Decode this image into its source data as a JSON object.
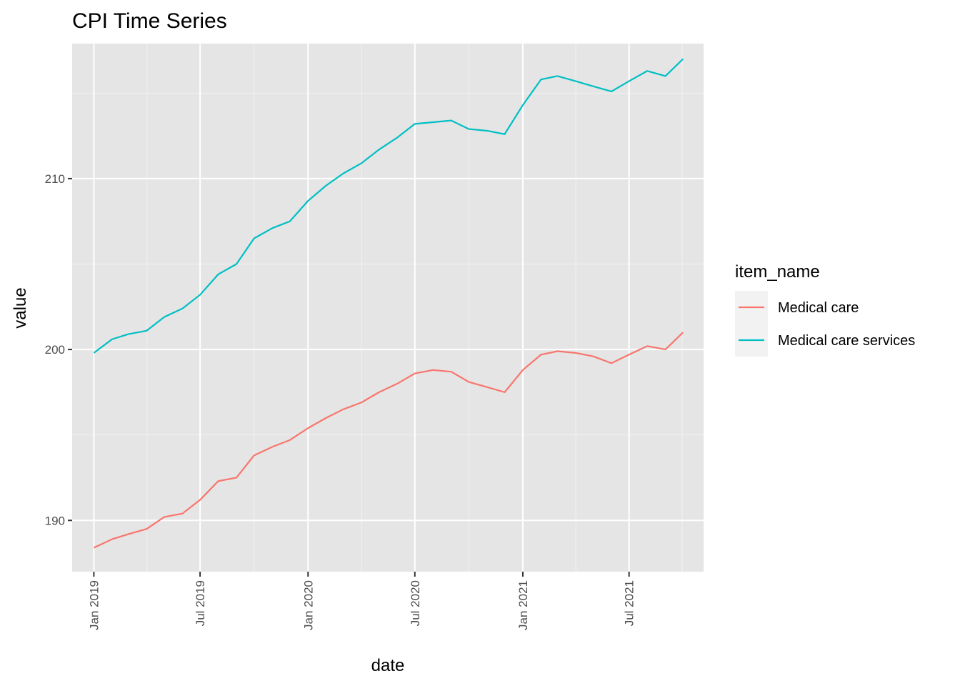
{
  "chart_data": {
    "type": "line",
    "title": "CPI Time Series",
    "xlabel": "date",
    "ylabel": "value",
    "legend_title": "item_name",
    "legend_position": "right",
    "grid": true,
    "x_ticks": [
      "Jan 2019",
      "Jul 2019",
      "Jan 2020",
      "Jul 2020",
      "Jan 2021",
      "Jul 2021"
    ],
    "y_ticks": [
      190,
      200,
      210
    ],
    "ylim": [
      187.0,
      217.9
    ],
    "xlim": [
      "2018-11-25",
      "2021-11-05"
    ],
    "x": [
      "2019-01",
      "2019-02",
      "2019-03",
      "2019-04",
      "2019-05",
      "2019-06",
      "2019-07",
      "2019-08",
      "2019-09",
      "2019-10",
      "2019-11",
      "2019-12",
      "2020-01",
      "2020-02",
      "2020-03",
      "2020-04",
      "2020-05",
      "2020-06",
      "2020-07",
      "2020-08",
      "2020-09",
      "2020-10",
      "2020-11",
      "2020-12",
      "2021-01",
      "2021-02",
      "2021-03",
      "2021-04",
      "2021-05",
      "2021-06",
      "2021-07",
      "2021-08",
      "2021-09",
      "2021-10"
    ],
    "series": [
      {
        "name": "Medical care",
        "color": "#F8766D",
        "values": [
          188.4,
          188.9,
          189.2,
          189.5,
          190.2,
          190.4,
          191.2,
          192.3,
          192.5,
          193.8,
          194.3,
          194.7,
          195.4,
          196.0,
          196.5,
          196.9,
          197.5,
          198.0,
          198.6,
          198.8,
          198.7,
          198.1,
          197.8,
          197.5,
          198.8,
          199.7,
          199.9,
          199.8,
          199.6,
          199.2,
          199.7,
          200.2,
          200.0,
          201.0
        ]
      },
      {
        "name": "Medical care services",
        "color": "#00BFC4",
        "values": [
          199.8,
          200.6,
          200.9,
          201.1,
          201.9,
          202.4,
          203.2,
          204.4,
          205.0,
          206.5,
          207.1,
          207.5,
          208.7,
          209.6,
          210.3,
          210.9,
          211.7,
          212.4,
          213.2,
          213.3,
          213.4,
          212.9,
          212.8,
          212.6,
          214.3,
          215.8,
          216.0,
          215.7,
          215.4,
          215.1,
          215.7,
          216.3,
          216.0,
          217.0
        ]
      }
    ]
  }
}
